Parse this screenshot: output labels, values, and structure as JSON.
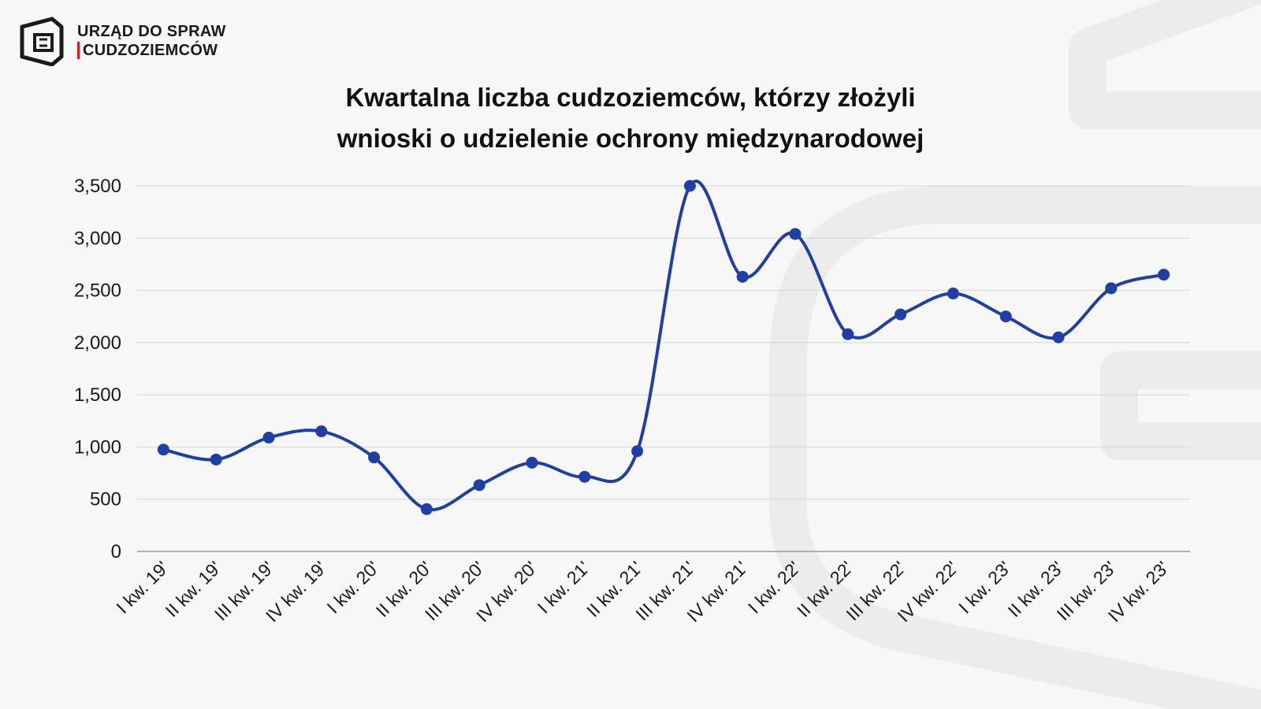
{
  "logo": {
    "line1": "URZĄD DO SPRAW",
    "line2": "CUDZOZIEMCÓW",
    "accent_color": "#d11a2a",
    "icon": "office-logo-icon"
  },
  "chart_data": {
    "type": "line",
    "title_line1": "Kwartalna liczba cudzoziemców, którzy złożyli",
    "title_line2": "wnioski o udzielenie ochrony międzynarodowej",
    "xlabel": "",
    "ylabel": "",
    "ylim": [
      0,
      3500
    ],
    "yticks": [
      0,
      500,
      1000,
      1500,
      2000,
      2500,
      3000,
      3500
    ],
    "ytick_labels": [
      "0",
      "500",
      "1,000",
      "1,500",
      "2,000",
      "2,500",
      "3,000",
      "3,500"
    ],
    "grid": true,
    "line_color": "#1f3fa6",
    "categories": [
      "I kw. 19'",
      "II kw. 19'",
      "III kw. 19'",
      "IV kw. 19'",
      "I kw. 20'",
      "II kw. 20'",
      "III kw. 20'",
      "IV kw. 20'",
      "I kw. 21'",
      "II kw. 21'",
      "III kw. 21'",
      "IV kw. 21'",
      "I kw. 22'",
      "II kw. 22'",
      "III kw. 22'",
      "IV kw. 22'",
      "I kw. 23'",
      "II kw. 23'",
      "III kw. 23'",
      "IV kw. 23'"
    ],
    "series": [
      {
        "values": [
          975,
          880,
          1090,
          1150,
          900,
          405,
          635,
          850,
          715,
          960,
          3500,
          2630,
          3040,
          2080,
          2270,
          2470,
          2250,
          2050,
          2520,
          2650
        ]
      }
    ]
  }
}
